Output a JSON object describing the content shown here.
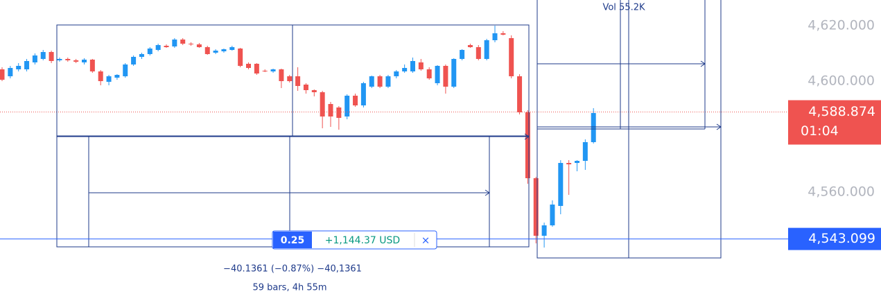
{
  "chart_data": {
    "type": "candlestick",
    "up_color": "#2196f3",
    "down_color": "#ef5350",
    "ylim": [
      4523.25,
      4629.25
    ],
    "yticks": [
      {
        "value": 4620,
        "label": "4,620.000"
      },
      {
        "value": 4600,
        "label": "4,600.000"
      },
      {
        "value": 4560,
        "label": "4,560.000"
      }
    ],
    "open": [
      4604.25,
      4601.75,
      4604.25,
      4604.25,
      4606.75,
      4608,
      4610.5,
      4607.5,
      4608,
      4607.5,
      4606.75,
      4607.75,
      4603.5,
      4599.75,
      4601.25,
      4601.75,
      4606,
      4608.75,
      4609.75,
      4611.25,
      4612.75,
      4612.5,
      4615,
      4613.5,
      4613.25,
      4612.25,
      4610.25,
      4610.75,
      4611.25,
      4611.75,
      4606.25,
      4606.25,
      4603.75,
      4603.5,
      4604.25,
      4601.75,
      4601.75,
      4598.75,
      4596.75,
      4596,
      4591.75,
      4590.5,
      4587.25,
      4594.75,
      4591.25,
      4598,
      4601.75,
      4598,
      4601.75,
      4603.5,
      4603.5,
      4606.75,
      4604.25,
      4599.25,
      4605.5,
      4598,
      4608,
      4613,
      4612.25,
      4608,
      4614.75,
      4617.25,
      4615.5,
      4601.75,
      4588.75,
      4565,
      4544.25,
      4548,
      4555,
      4570.5,
      4570.5,
      4571.25,
      4578
    ],
    "high": [
      4605,
      4605.5,
      4606.5,
      4608,
      4610,
      4611.25,
      4611,
      4608.5,
      4608.5,
      4608,
      4608.25,
      4608,
      4604,
      4602.25,
      4602.5,
      4606.5,
      4609.25,
      4610.25,
      4612.25,
      4613.5,
      4613.25,
      4615.5,
      4615.5,
      4614,
      4613.75,
      4612.75,
      4611.5,
      4611.75,
      4612.75,
      4612,
      4606.75,
      4606.5,
      4604.25,
      4604.5,
      4604.5,
      4602.25,
      4605,
      4599.25,
      4597,
      4596.5,
      4592.5,
      4591,
      4595.25,
      4595.5,
      4599.75,
      4602,
      4602.25,
      4602.25,
      4604,
      4606,
      4608.5,
      4608,
      4605,
      4605.75,
      4606,
      4608.25,
      4611.5,
      4613.5,
      4613,
      4615.25,
      4620,
      4618,
      4616.5,
      4602.5,
      4589.5,
      4565.5,
      4549,
      4557,
      4571.5,
      4571.5,
      4571.5,
      4579,
      4590.25
    ],
    "low": [
      4600,
      4601,
      4603.5,
      4603.5,
      4606,
      4607.5,
      4606.5,
      4607,
      4607,
      4606.5,
      4606,
      4603,
      4598.5,
      4598.5,
      4600.5,
      4601.25,
      4605.5,
      4608,
      4609.25,
      4610.75,
      4612,
      4612,
      4613,
      4612.75,
      4612,
      4609.5,
      4609.75,
      4610.25,
      4611,
      4605,
      4604.25,
      4602.25,
      4603.25,
      4603,
      4597.5,
      4599.5,
      4596.5,
      4595.5,
      4594.5,
      4583,
      4583.5,
      4582.5,
      4586.25,
      4590.75,
      4590.5,
      4597.5,
      4597.5,
      4597.5,
      4601,
      4603,
      4603,
      4603.75,
      4600.5,
      4598.5,
      4595.5,
      4597.5,
      4607.5,
      4612,
      4607.5,
      4607.5,
      4614,
      4616.5,
      4601,
      4588,
      4563,
      4541.5,
      4540,
      4547.5,
      4552,
      4559,
      4567.5,
      4568,
      4577.5
    ],
    "close": [
      4600.5,
      4604.75,
      4605.5,
      4607.25,
      4609.25,
      4610.5,
      4607.25,
      4608,
      4607.5,
      4607,
      4607.75,
      4603.5,
      4600,
      4601.75,
      4602.25,
      4606,
      4608.75,
      4609.75,
      4611.75,
      4613,
      4612.25,
      4615,
      4613.5,
      4613.25,
      4612.25,
      4609.75,
      4611,
      4611.5,
      4612.25,
      4605.5,
      4604.75,
      4602.75,
      4603.5,
      4604.25,
      4600,
      4600,
      4598.25,
      4596.75,
      4596,
      4587.25,
      4587.25,
      4586.75,
      4594.75,
      4591.25,
      4599.25,
      4601.75,
      4598,
      4601.75,
      4603.5,
      4604.75,
      4607.25,
      4604.25,
      4601,
      4605.5,
      4598,
      4608,
      4611.25,
      4612.25,
      4608,
      4614.75,
      4617.25,
      4616.75,
      4601.75,
      4588.75,
      4565,
      4544.25,
      4548,
      4555.5,
      4570.5,
      4570,
      4571.25,
      4578,
      4588.5
    ],
    "last_price": {
      "value": 4588.874,
      "label": "4,588.874"
    },
    "countdown": "01:04",
    "cursor_price": {
      "value": 4543.099,
      "label": "4,543.099"
    },
    "position": {
      "ratio": "0.25",
      "pnl": "+1,144.37 USD",
      "close": "×"
    },
    "annotations": {
      "volume": "Vol 55.2K",
      "change": "−40.1361 (−0.87%) −40,1361",
      "range": "59 bars, 4h 55m"
    }
  }
}
